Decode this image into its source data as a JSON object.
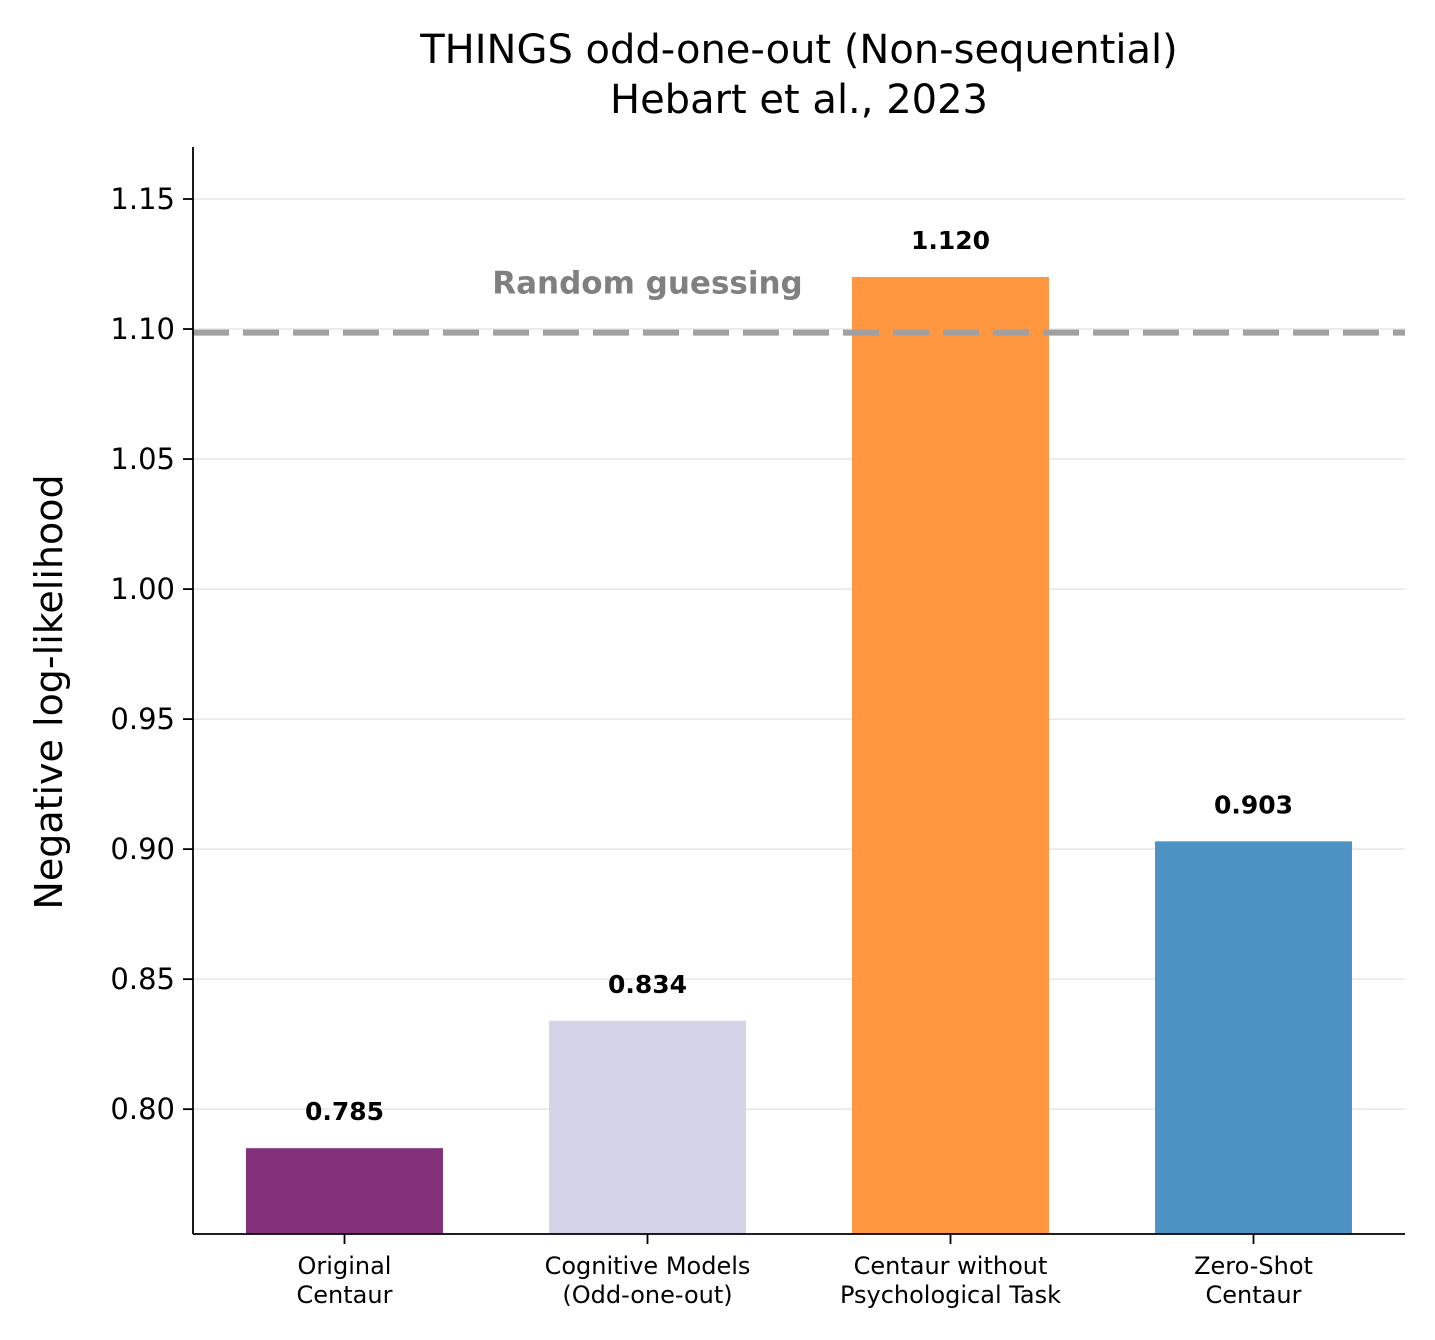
{
  "chart_data": {
    "type": "bar",
    "title_line1": "THINGS odd-one-out (Non-sequential)",
    "title_line2": "Hebart et al., 2023",
    "xlabel": "",
    "ylabel": "Negative log-likelihood",
    "categories": [
      [
        "Original",
        "Centaur"
      ],
      [
        "Cognitive Models",
        "(Odd-one-out)"
      ],
      [
        "Centaur without",
        "Psychological Task"
      ],
      [
        "Zero-Shot",
        "Centaur"
      ]
    ],
    "values": [
      0.785,
      0.834,
      1.12,
      0.903
    ],
    "value_labels": [
      "0.785",
      "0.834",
      "1.120",
      "0.903"
    ],
    "colors": [
      "#85307a",
      "#d4d3e8",
      "#ff9640",
      "#4c92c3"
    ],
    "reference_line": {
      "value": 1.0986,
      "label": "Random guessing",
      "color": "#a0a0a0",
      "label_color": "#808080"
    },
    "ylim": [
      0.752,
      1.17
    ],
    "yticks": [
      0.8,
      0.85,
      0.9,
      0.95,
      1.0,
      1.05,
      1.1,
      1.15
    ],
    "ytick_labels": [
      "0.80",
      "0.85",
      "0.90",
      "0.95",
      "1.00",
      "1.05",
      "1.10",
      "1.15"
    ],
    "grid": "horizontal",
    "grid_color": "#e6e6e6",
    "axis_color": "#000000"
  }
}
